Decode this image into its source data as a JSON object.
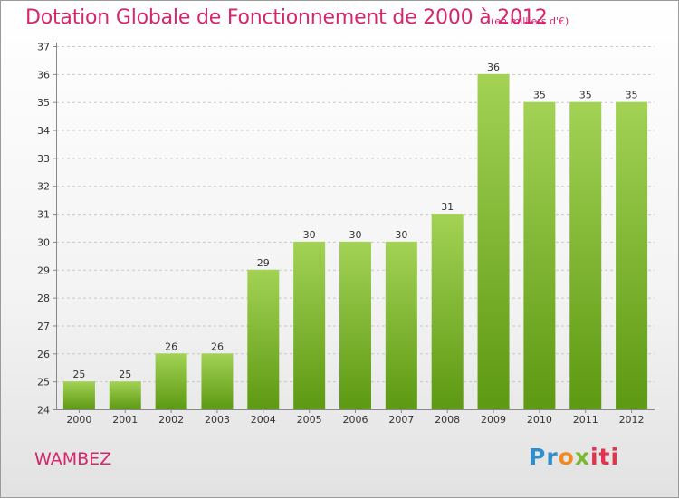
{
  "chart_data": {
    "type": "bar",
    "title": "Dotation Globale de Fonctionnement de 2000 à 2012",
    "subtitle": "(en milliers d'€)",
    "categories": [
      "2000",
      "2001",
      "2002",
      "2003",
      "2004",
      "2005",
      "2006",
      "2007",
      "2008",
      "2009",
      "2010",
      "2011",
      "2012"
    ],
    "values": [
      25,
      25,
      26,
      26,
      29,
      30,
      30,
      30,
      31,
      36,
      35,
      35,
      35
    ],
    "ylim": [
      24,
      37
    ],
    "yticks": [
      24,
      25,
      26,
      27,
      28,
      29,
      30,
      31,
      32,
      33,
      34,
      35,
      36,
      37
    ],
    "grid": true,
    "bar_color_top": "#a3d255",
    "bar_color_bottom": "#5d9912"
  },
  "commune": "WAMBEZ",
  "logo": {
    "parts": [
      "Pr",
      "o",
      "x",
      "iti"
    ],
    "colors": [
      "#2f8fce",
      "#f08a22",
      "#7cb82f",
      "#e0344f"
    ]
  }
}
